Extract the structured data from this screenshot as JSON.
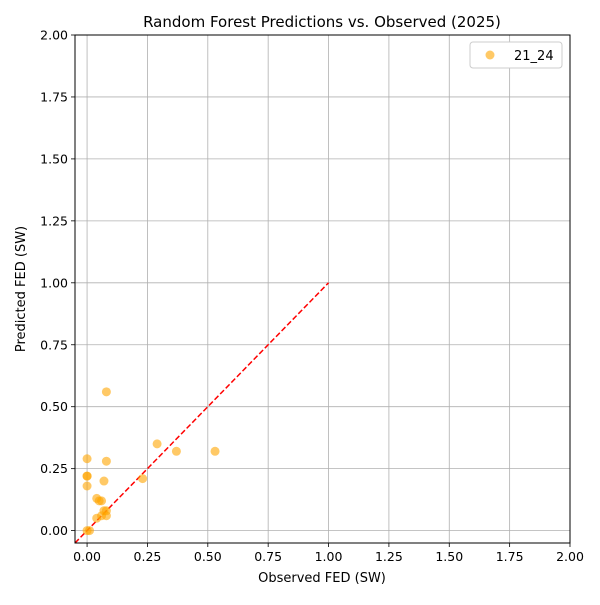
{
  "chart_data": {
    "type": "scatter",
    "title": "Random Forest Predictions vs. Observed (2025)",
    "xlabel": "Observed FED (SW)",
    "ylabel": "Predicted FED (SW)",
    "xlim": [
      -0.05,
      2.0
    ],
    "ylim": [
      -0.05,
      2.0
    ],
    "xticks": [
      "0.00",
      "0.25",
      "0.50",
      "0.75",
      "1.00",
      "1.25",
      "1.50",
      "1.75",
      "2.00"
    ],
    "yticks": [
      "0.00",
      "0.25",
      "0.50",
      "0.75",
      "1.00",
      "1.25",
      "1.50",
      "1.75",
      "2.00"
    ],
    "grid": true,
    "legend": "top-right",
    "series": [
      {
        "name": "21_24",
        "color": "#ffa500",
        "points": [
          {
            "x": 0.0,
            "y": 0.0
          },
          {
            "x": 0.01,
            "y": 0.0
          },
          {
            "x": 0.0,
            "y": 0.18
          },
          {
            "x": 0.0,
            "y": 0.22
          },
          {
            "x": 0.0,
            "y": 0.22
          },
          {
            "x": 0.0,
            "y": 0.29
          },
          {
            "x": 0.04,
            "y": 0.05
          },
          {
            "x": 0.04,
            "y": 0.13
          },
          {
            "x": 0.05,
            "y": 0.12
          },
          {
            "x": 0.06,
            "y": 0.12
          },
          {
            "x": 0.06,
            "y": 0.06
          },
          {
            "x": 0.07,
            "y": 0.2
          },
          {
            "x": 0.07,
            "y": 0.08
          },
          {
            "x": 0.08,
            "y": 0.06
          },
          {
            "x": 0.08,
            "y": 0.08
          },
          {
            "x": 0.08,
            "y": 0.28
          },
          {
            "x": 0.08,
            "y": 0.56
          },
          {
            "x": 0.23,
            "y": 0.21
          },
          {
            "x": 0.29,
            "y": 0.35
          },
          {
            "x": 0.37,
            "y": 0.32
          },
          {
            "x": 0.53,
            "y": 0.32
          }
        ]
      }
    ],
    "reference_line": {
      "style": "dashed",
      "color": "#ff0000",
      "from": [
        -0.05,
        -0.05
      ],
      "to": [
        1.0,
        1.0
      ]
    }
  }
}
